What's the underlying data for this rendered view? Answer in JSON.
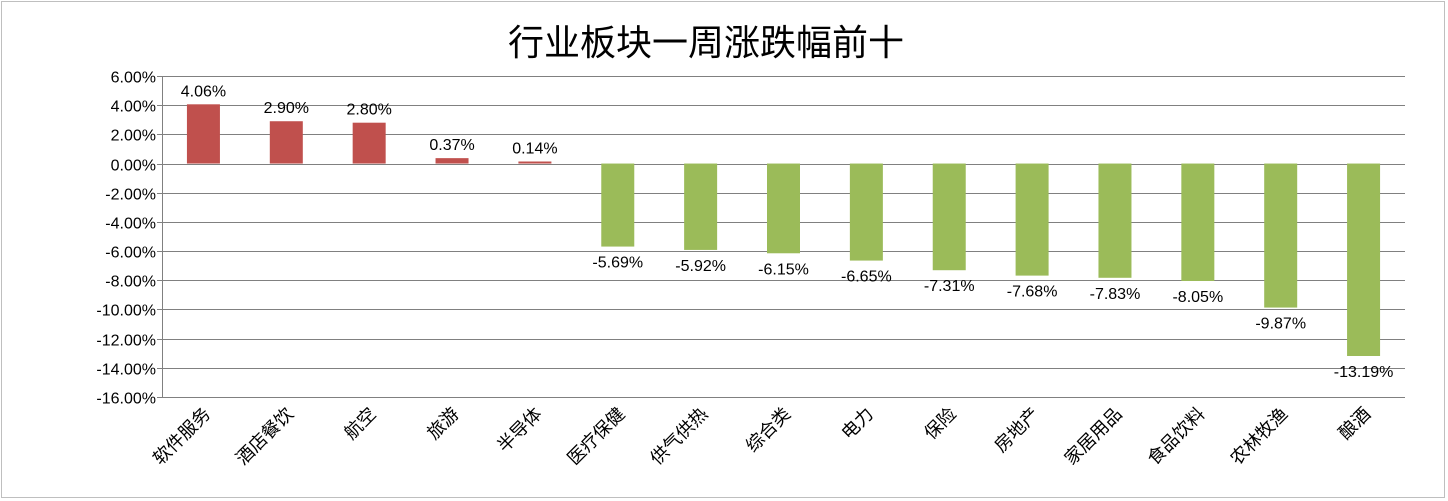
{
  "chart_data": {
    "type": "bar",
    "title": "行业板块一周涨跌幅前十",
    "xlabel": "",
    "ylabel": "",
    "categories": [
      "软件服务",
      "酒店餐饮",
      "航空",
      "旅游",
      "半导体",
      "医疗保健",
      "供气供热",
      "综合类",
      "电力",
      "保险",
      "房地产",
      "家居用品",
      "食品饮料",
      "农林牧渔",
      "酿酒"
    ],
    "values": [
      4.06,
      2.9,
      2.8,
      0.37,
      0.14,
      -5.69,
      -5.92,
      -6.15,
      -6.65,
      -7.31,
      -7.68,
      -7.83,
      -8.05,
      -9.87,
      -13.19
    ],
    "value_labels": [
      "4.06%",
      "2.90%",
      "2.80%",
      "0.37%",
      "0.14%",
      "-5.69%",
      "-5.92%",
      "-6.15%",
      "-6.65%",
      "-7.31%",
      "-7.68%",
      "-7.83%",
      "-8.05%",
      "-9.87%",
      "-13.19%"
    ],
    "ylim": [
      -16,
      6
    ],
    "yticks": [
      6,
      4,
      2,
      0,
      -2,
      -4,
      -6,
      -8,
      -10,
      -12,
      -14,
      -16
    ],
    "ytick_labels": [
      "6.00%",
      "4.00%",
      "2.00%",
      "0.00%",
      "-2.00%",
      "-4.00%",
      "-6.00%",
      "-8.00%",
      "-10.00%",
      "-12.00%",
      "-14.00%",
      "-16.00%"
    ],
    "grid": true,
    "legend": "none",
    "colors": {
      "positive": "#c0504d",
      "negative": "#9bbb59",
      "grid": "#808080"
    }
  }
}
